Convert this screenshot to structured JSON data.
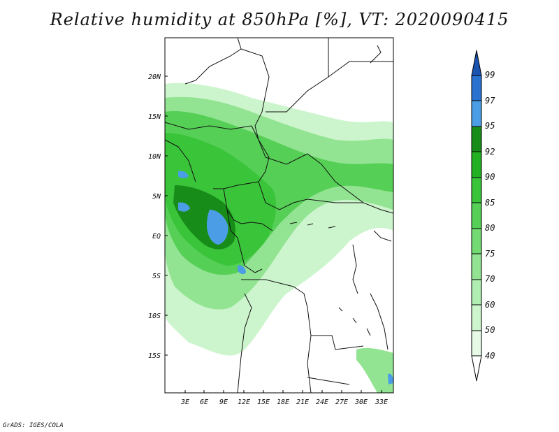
{
  "title": "Relative humidity at 850hPa [%], VT: 2020090415",
  "credit": "GrADS: IGES/COLA",
  "map": {
    "lat_labels": [
      "20N",
      "15N",
      "10N",
      "5N",
      "EQ",
      "5S",
      "10S",
      "15S"
    ],
    "lon_labels": [
      "3E",
      "6E",
      "9E",
      "12E",
      "15E",
      "18E",
      "21E",
      "24E",
      "27E",
      "30E",
      "33E"
    ]
  },
  "colorbar": {
    "labels": [
      "40",
      "50",
      "60",
      "70",
      "75",
      "80",
      "85",
      "90",
      "92",
      "95",
      "97",
      "99"
    ],
    "colors": [
      "#ffffff",
      "#e6fae6",
      "#cdf5cd",
      "#b0edb0",
      "#92e492",
      "#74da74",
      "#56cf56",
      "#3ac43a",
      "#23b023",
      "#188c18",
      "#4b9ee6",
      "#2a72d0",
      "#1a54b0"
    ]
  }
}
